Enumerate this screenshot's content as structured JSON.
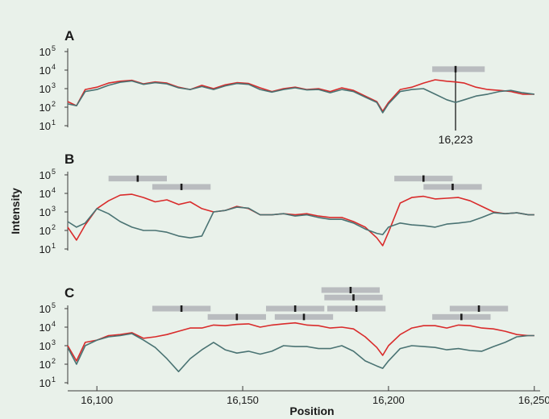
{
  "chart_data": {
    "type": "line",
    "xlabel": "Position",
    "ylabel": "Intensity",
    "x_ticks": [
      "16,100",
      "16,150",
      "16,200",
      "16,250"
    ],
    "x_tick_values": [
      16100,
      16150,
      16200,
      16250
    ],
    "xlim": [
      16090,
      16252
    ],
    "ylim_log10": [
      1,
      5
    ],
    "y_tick_base": "10",
    "y_tick_exponents": [
      "1",
      "2",
      "3",
      "4",
      "5"
    ],
    "colors": {
      "red": "#d92b2b",
      "gray": "#4a7373",
      "bar": "#b9bcbf"
    },
    "panels": [
      {
        "label": "A",
        "x": [
          16090,
          16093,
          16096,
          16100,
          16104,
          16108,
          16112,
          16116,
          16120,
          16124,
          16128,
          16132,
          16136,
          16140,
          16144,
          16148,
          16152,
          16156,
          16160,
          16164,
          16168,
          16172,
          16176,
          16180,
          16184,
          16188,
          16192,
          16196,
          16198,
          16200,
          16204,
          16208,
          16212,
          16216,
          16220,
          16223,
          16226,
          16230,
          16234,
          16238,
          16242,
          16246,
          16250
        ],
        "series": [
          {
            "color": "red",
            "values": [
              200,
              120,
              900,
              1200,
              2000,
              2500,
              2800,
              1800,
              2300,
              2000,
              1200,
              900,
              1500,
              1000,
              1600,
              2100,
              1900,
              1100,
              700,
              1000,
              1200,
              900,
              1000,
              700,
              1100,
              800,
              400,
              200,
              60,
              180,
              900,
              1200,
              2000,
              3000,
              2500,
              2300,
              2000,
              1200,
              900,
              800,
              700,
              500,
              500
            ]
          },
          {
            "color": "gray",
            "values": [
              150,
              120,
              700,
              900,
              1500,
              2200,
              2600,
              1700,
              2100,
              1800,
              1100,
              900,
              1300,
              900,
              1400,
              1900,
              1700,
              900,
              650,
              900,
              1100,
              850,
              900,
              600,
              900,
              700,
              350,
              180,
              50,
              150,
              700,
              900,
              1000,
              500,
              250,
              180,
              250,
              400,
              500,
              700,
              800,
              600,
              500
            ]
          }
        ],
        "annotation": "16,223",
        "annotation_x": 16223,
        "reads": [
          {
            "start": 16215,
            "end": 16233,
            "mark": 16223,
            "level": 4.05
          }
        ]
      },
      {
        "label": "B",
        "x": [
          16090,
          16093,
          16096,
          16100,
          16104,
          16108,
          16112,
          16116,
          16120,
          16124,
          16128,
          16132,
          16136,
          16140,
          16144,
          16148,
          16152,
          16156,
          16160,
          16164,
          16168,
          16172,
          16176,
          16180,
          16184,
          16188,
          16192,
          16196,
          16198,
          16200,
          16204,
          16208,
          16212,
          16216,
          16220,
          16224,
          16228,
          16232,
          16236,
          16240,
          16244,
          16248,
          16250
        ],
        "series": [
          {
            "color": "red",
            "values": [
              150,
              30,
              200,
              1500,
              4000,
              8000,
              9000,
              6000,
              3500,
              4500,
              2500,
              3500,
              1500,
              1000,
              1200,
              2000,
              1500,
              700,
              700,
              800,
              700,
              800,
              600,
              500,
              500,
              300,
              150,
              40,
              15,
              80,
              3000,
              6000,
              7000,
              5000,
              5500,
              6000,
              4000,
              2000,
              1000,
              800,
              900,
              700,
              700
            ]
          },
          {
            "color": "gray",
            "values": [
              300,
              150,
              250,
              1500,
              800,
              300,
              150,
              100,
              100,
              80,
              50,
              40,
              50,
              1000,
              1200,
              1800,
              1600,
              700,
              700,
              800,
              600,
              700,
              500,
              400,
              400,
              250,
              120,
              70,
              60,
              150,
              250,
              200,
              180,
              150,
              220,
              250,
              300,
              500,
              900,
              800,
              900,
              700,
              700
            ]
          }
        ],
        "reads": [
          {
            "start": 16104,
            "end": 16124,
            "mark": 16114,
            "level": 4.8
          },
          {
            "start": 16119,
            "end": 16139,
            "mark": 16129,
            "level": 4.35
          },
          {
            "start": 16202,
            "end": 16222,
            "mark": 16212,
            "level": 4.8
          },
          {
            "start": 16212,
            "end": 16232,
            "mark": 16222,
            "level": 4.35
          }
        ]
      },
      {
        "label": "C",
        "x": [
          16090,
          16093,
          16096,
          16100,
          16104,
          16108,
          16112,
          16116,
          16120,
          16124,
          16128,
          16132,
          16136,
          16140,
          16144,
          16148,
          16152,
          16156,
          16160,
          16164,
          16168,
          16172,
          16176,
          16180,
          16184,
          16188,
          16192,
          16196,
          16198,
          16200,
          16204,
          16208,
          16212,
          16216,
          16220,
          16224,
          16228,
          16232,
          16236,
          16240,
          16244,
          16248,
          16250
        ],
        "series": [
          {
            "color": "red",
            "values": [
              1000,
              150,
              1500,
              2000,
              3500,
              4000,
              5000,
              2500,
              3000,
              4000,
              6000,
              9000,
              9000,
              13000,
              12000,
              14000,
              15000,
              10000,
              13000,
              15000,
              17000,
              13000,
              12000,
              9000,
              10000,
              8000,
              3000,
              800,
              300,
              1000,
              4000,
              9000,
              12000,
              12000,
              9000,
              13000,
              12000,
              9000,
              8000,
              6000,
              4000,
              3500,
              3500
            ]
          },
          {
            "color": "gray",
            "values": [
              800,
              100,
              1000,
              2000,
              3000,
              3500,
              4500,
              2000,
              800,
              200,
              40,
              200,
              600,
              1500,
              600,
              400,
              500,
              350,
              500,
              1000,
              900,
              900,
              700,
              700,
              1000,
              500,
              150,
              80,
              60,
              150,
              700,
              1000,
              900,
              800,
              600,
              700,
              550,
              500,
              900,
              1500,
              3000,
              3500,
              3500
            ]
          }
        ],
        "reads": [
          {
            "start": 16119,
            "end": 16139,
            "mark": 16129,
            "level": 5.0
          },
          {
            "start": 16138,
            "end": 16158,
            "mark": 16148,
            "level": 4.55
          },
          {
            "start": 16158,
            "end": 16178,
            "mark": 16168,
            "level": 5.0
          },
          {
            "start": 16161,
            "end": 16181,
            "mark": 16171,
            "level": 4.55
          },
          {
            "start": 16177,
            "end": 16197,
            "mark": 16187,
            "level": 6.0
          },
          {
            "start": 16178,
            "end": 16198,
            "mark": 16188,
            "level": 5.6
          },
          {
            "start": 16179,
            "end": 16199,
            "mark": 16189,
            "level": 5.0
          },
          {
            "start": 16215,
            "end": 16235,
            "mark": 16225,
            "level": 4.55
          },
          {
            "start": 16221,
            "end": 16241,
            "mark": 16231,
            "level": 5.0
          }
        ]
      }
    ]
  }
}
